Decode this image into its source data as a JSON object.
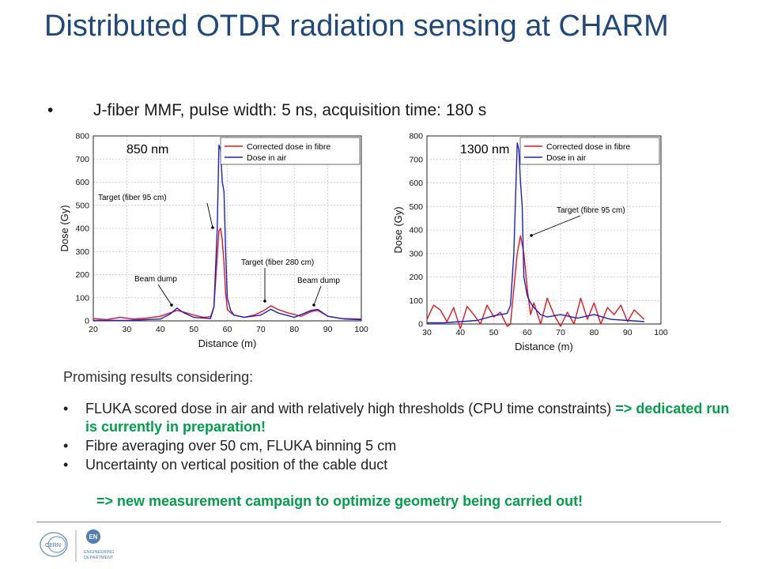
{
  "title": "Distributed OTDR radiation sensing at CHARM",
  "subtitle": "J-fiber MMF, pulse width: 5 ns, acquisition time: 180 s",
  "bullet": "•",
  "promising": "Promising results considering:",
  "items": [
    {
      "text": "FLUKA scored dose in air and with relatively high thresholds (CPU time constraints)",
      "note": " => dedicated run is currently in preparation!"
    },
    {
      "text": "Fibre averaging over 50 cm, FLUKA binning 5 cm"
    },
    {
      "text": "Uncertainty on vertical position of the cable duct"
    }
  ],
  "note2": "=> new measurement campaign to optimize geometry being carried out!",
  "logos": {
    "cern": "CERN",
    "dept_abbr": "EN",
    "dept_line1": "ENGINEERING",
    "dept_line2": "DEPARTMENT"
  },
  "colors": {
    "title": "#1f497d",
    "green": "#00a04a",
    "corrected": "#e8141b",
    "air": "#1a20d0"
  },
  "chart_data": [
    {
      "type": "line",
      "wavelength_label": "850 nm",
      "xlabel": "Distance (m)",
      "ylabel": "Dose (Gy)",
      "xlim": [
        20,
        100
      ],
      "ylim": [
        0,
        800
      ],
      "xticks": [
        20,
        30,
        40,
        50,
        60,
        70,
        80,
        90,
        100
      ],
      "yticks": [
        0,
        100,
        200,
        300,
        400,
        500,
        600,
        700,
        800
      ],
      "grid": true,
      "legend_position": "top-right",
      "series": [
        {
          "name": "Corrected dose in fibre",
          "x": [
            20,
            24,
            28,
            32,
            36,
            40,
            43,
            45,
            47,
            50,
            53,
            55,
            56,
            57,
            57.5,
            58,
            58.5,
            59,
            59.5,
            60,
            61,
            62,
            65,
            68,
            71,
            73,
            75,
            78,
            82,
            85,
            87,
            90,
            94,
            100
          ],
          "y": [
            10,
            5,
            15,
            8,
            12,
            20,
            35,
            45,
            38,
            25,
            15,
            18,
            60,
            280,
            390,
            400,
            350,
            250,
            120,
            50,
            35,
            25,
            15,
            25,
            45,
            65,
            50,
            35,
            20,
            40,
            45,
            20,
            10,
            8
          ]
        },
        {
          "name": "Dose in air",
          "x": [
            20,
            30,
            40,
            43,
            45,
            47,
            50,
            55,
            56,
            57,
            57.5,
            58,
            58.5,
            59,
            59.5,
            60,
            61,
            62,
            65,
            70,
            73,
            75,
            80,
            85,
            87,
            90,
            95,
            100
          ],
          "y": [
            2,
            2,
            8,
            30,
            55,
            35,
            15,
            10,
            60,
            400,
            760,
            740,
            600,
            560,
            300,
            100,
            45,
            25,
            15,
            25,
            50,
            35,
            15,
            45,
            50,
            20,
            8,
            5
          ]
        }
      ],
      "annotations": [
        "Target (fiber 95 cm)",
        "Target (fiber 280 cm)",
        "Beam dump",
        "Beam dump"
      ]
    },
    {
      "type": "line",
      "wavelength_label": "1300 nm",
      "xlabel": "Distance (m)",
      "ylabel": "Dose (Gy)",
      "xlim": [
        30,
        100
      ],
      "ylim": [
        0,
        800
      ],
      "xticks": [
        30,
        40,
        50,
        60,
        70,
        80,
        90,
        100
      ],
      "yticks": [
        0,
        100,
        200,
        300,
        400,
        500,
        600,
        700,
        800
      ],
      "grid": true,
      "legend_position": "top-right",
      "series": [
        {
          "name": "Corrected dose in fibre",
          "x": [
            30,
            32,
            34,
            36,
            38,
            40,
            42,
            44,
            46,
            48,
            50,
            52,
            54,
            55,
            56,
            57,
            58,
            59,
            60,
            61,
            62,
            64,
            66,
            68,
            70,
            72,
            74,
            76,
            78,
            80,
            82,
            84,
            86,
            88,
            90,
            92,
            95
          ],
          "y": [
            20,
            80,
            60,
            10,
            70,
            -20,
            75,
            40,
            0,
            80,
            30,
            50,
            -10,
            0,
            150,
            300,
            375,
            300,
            150,
            40,
            90,
            0,
            110,
            40,
            -10,
            50,
            0,
            110,
            20,
            90,
            0,
            70,
            40,
            80,
            10,
            60,
            20
          ]
        },
        {
          "name": "Dose in air",
          "x": [
            30,
            35,
            40,
            45,
            50,
            54,
            55,
            56,
            57,
            57.5,
            58,
            58.5,
            59,
            60,
            61,
            62,
            64,
            66,
            70,
            75,
            80,
            85,
            90,
            95
          ],
          "y": [
            5,
            5,
            10,
            15,
            35,
            45,
            80,
            300,
            770,
            740,
            600,
            500,
            200,
            120,
            90,
            70,
            40,
            30,
            40,
            25,
            40,
            20,
            15,
            10
          ]
        }
      ],
      "annotations": [
        "Target (fibre 95 cm)"
      ]
    }
  ]
}
